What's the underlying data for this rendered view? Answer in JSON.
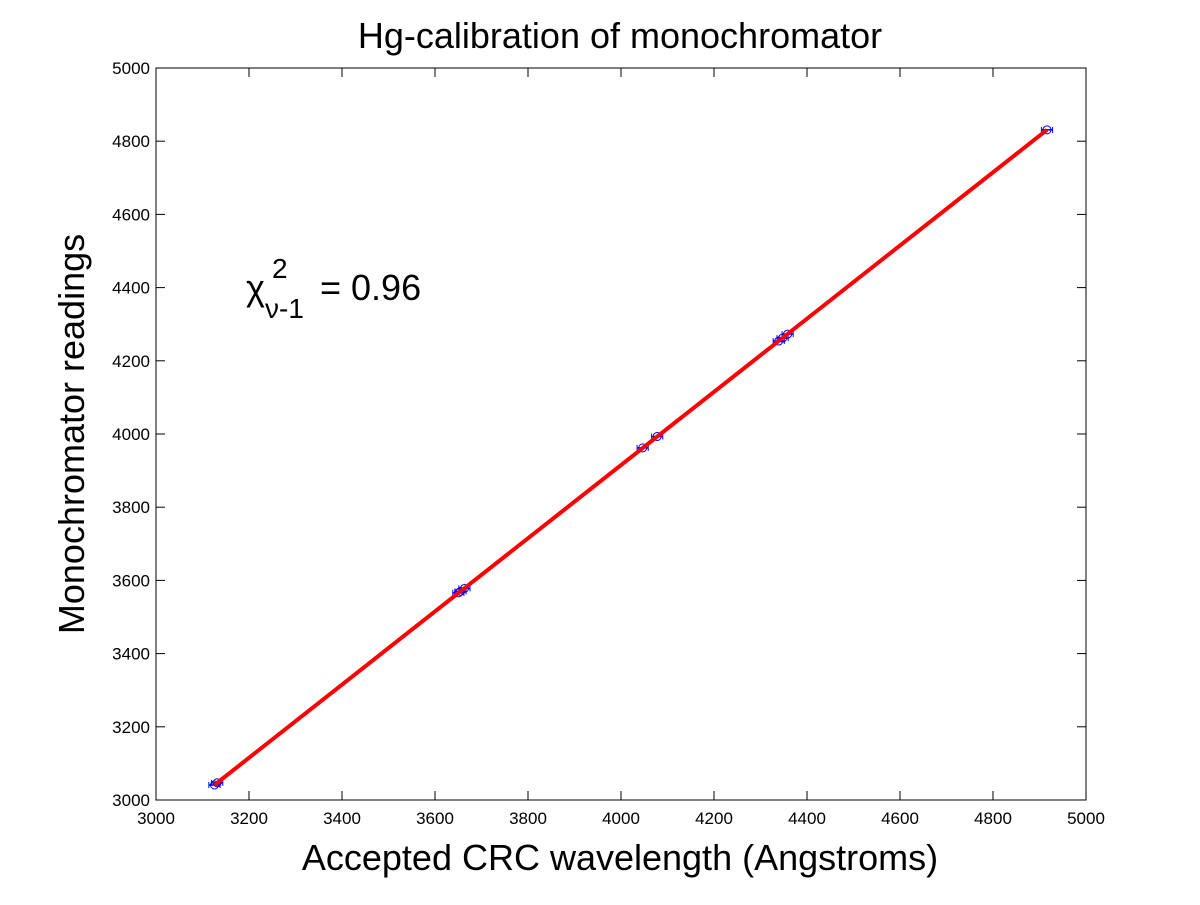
{
  "chart_data": {
    "type": "scatter",
    "title": "Hg-calibration of monochromator",
    "xlabel": "Accepted CRC wavelength (Angstroms)",
    "ylabel": "Monochromator readings",
    "xlim": [
      3000,
      5000
    ],
    "ylim": [
      3000,
      5000
    ],
    "xticks": [
      3000,
      3200,
      3400,
      3600,
      3800,
      4000,
      4200,
      4400,
      4600,
      4800,
      5000
    ],
    "yticks": [
      3000,
      3200,
      3400,
      3600,
      3800,
      4000,
      4200,
      4400,
      4600,
      4800,
      5000
    ],
    "grid": false,
    "annotation": {
      "chi": "χ",
      "sup": "2",
      "sub": "ν-1",
      "text": " = 0.96"
    },
    "series": [
      {
        "name": "data",
        "marker": "circle",
        "color": "#0000ff",
        "xerr": 12,
        "x": [
          3125.7,
          3131.6,
          3650.2,
          3654.8,
          3663.3,
          4046.6,
          4077.8,
          4339.2,
          4347.5,
          4358.3,
          4916.1
        ],
        "y": [
          3041,
          3047,
          3566,
          3570,
          3578,
          3962,
          3993,
          4254,
          4262,
          4273,
          4831
        ]
      },
      {
        "name": "fit",
        "type": "line",
        "color": "#ff0000",
        "x": [
          3125.7,
          4916.1
        ],
        "y": [
          3041,
          4831
        ]
      }
    ]
  }
}
